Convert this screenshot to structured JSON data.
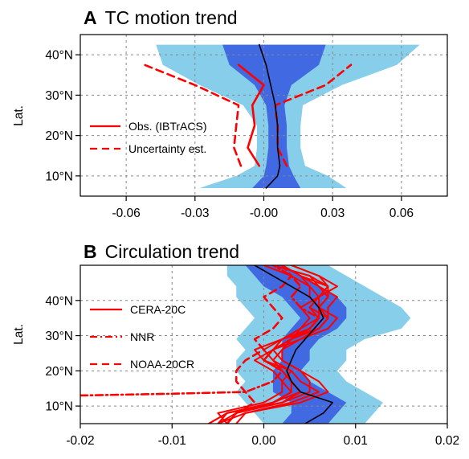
{
  "colors": {
    "outer_band": "#87CEEB",
    "inner_band": "#4169E1",
    "ensemble_mean": "#000000",
    "observation": "#FF0000",
    "grid": "#888888"
  },
  "chart_data": [
    {
      "type": "line",
      "panel_letter": "A",
      "title": "TC motion trend",
      "ylabel": "Lat.",
      "xlabel": "",
      "xlim": [
        -0.08,
        0.08
      ],
      "ylim": [
        5,
        45
      ],
      "xticks": [
        -0.06,
        -0.03,
        0.0,
        0.03,
        0.06
      ],
      "xtick_labels": [
        "-0.06",
        "-0.03",
        "-0.00",
        "0.03",
        "0.06"
      ],
      "yticks": [
        10,
        20,
        30,
        40
      ],
      "ytick_labels": [
        "10°N",
        "20°N",
        "30°N",
        "40°N"
      ],
      "grid": true,
      "legend_position": "left",
      "legend": [
        "Obs. (IBTrACS)",
        "Uncertainty est."
      ],
      "lat": [
        7,
        10,
        12.5,
        17,
        20,
        22.5,
        27.5,
        32.5,
        37.5,
        42.5
      ],
      "outer_band": {
        "lower": [
          -0.028,
          -0.012,
          -0.004,
          -0.003,
          -0.003,
          -0.003,
          -0.009,
          -0.028,
          -0.044,
          -0.047
        ],
        "upper": [
          0.036,
          0.028,
          0.018,
          0.016,
          0.016,
          0.016,
          0.017,
          0.034,
          0.058,
          0.068
        ]
      },
      "inner_band": {
        "lower": [
          -0.005,
          0.0,
          0.001,
          0.002,
          0.002,
          0.002,
          0.001,
          -0.004,
          -0.015,
          -0.018
        ],
        "upper": [
          0.016,
          0.013,
          0.011,
          0.01,
          0.01,
          0.01,
          0.009,
          0.012,
          0.024,
          0.027
        ]
      },
      "ensemble_mean": {
        "lat": [
          7,
          10,
          12.5,
          17,
          20,
          22.5,
          27.5,
          32.5,
          37.5,
          42.5
        ],
        "x": [
          0.001,
          0.006,
          0.007,
          0.006,
          0.006,
          0.006,
          0.005,
          0.003,
          0.001,
          -0.002
        ]
      },
      "series": [
        {
          "name": "Obs. (IBTrACS)",
          "style": "solid",
          "lat": [
            12.5,
            17,
            22.5,
            27.5,
            32.5,
            37.5
          ],
          "x": [
            -0.002,
            -0.007,
            -0.004,
            -0.005,
            0.0,
            -0.011
          ]
        },
        {
          "name": "Uncertainty est.",
          "style": "dashed",
          "lat": [
            12.5,
            17,
            22.5,
            27.5,
            32.5,
            37.5
          ],
          "x": [
            -0.01,
            -0.013,
            -0.012,
            -0.011,
            -0.03,
            -0.052
          ]
        },
        {
          "style": "dashed",
          "lat": [
            12.5,
            17,
            22.5,
            27.5,
            32.5,
            37.5
          ],
          "x": [
            0.01,
            0.006,
            0.006,
            0.005,
            0.027,
            0.038
          ]
        }
      ]
    },
    {
      "type": "line",
      "panel_letter": "B",
      "title": "Circulation trend",
      "ylabel": "Lat.",
      "xlabel": "",
      "xlim": [
        -0.02,
        0.02
      ],
      "ylim": [
        5,
        50
      ],
      "xticks": [
        -0.02,
        -0.01,
        0.0,
        0.01,
        0.02
      ],
      "xtick_labels": [
        "-0.02",
        "-0.01",
        "0.00",
        "0.01",
        "0.02"
      ],
      "yticks": [
        10,
        20,
        30,
        40
      ],
      "ytick_labels": [
        "10°N",
        "20°N",
        "30°N",
        "40°N"
      ],
      "grid": true,
      "legend_position": "left",
      "legend": [
        "CERA-20C",
        "NNR",
        "NOAA-20CR"
      ],
      "outer_band": {
        "lat": [
          5,
          8,
          11,
          14,
          17,
          20,
          23,
          26,
          29,
          32,
          35,
          38,
          41,
          44,
          47,
          50
        ],
        "lower": [
          0.0,
          -0.001,
          -0.002,
          -0.003,
          -0.002,
          -0.003,
          -0.003,
          -0.002,
          -0.003,
          -0.002,
          -0.001,
          -0.002,
          -0.003,
          -0.003,
          -0.004,
          -0.004
        ],
        "upper": [
          0.011,
          0.012,
          0.013,
          0.011,
          0.009,
          0.008,
          0.009,
          0.009,
          0.011,
          0.015,
          0.016,
          0.015,
          0.013,
          0.011,
          0.009,
          0.007
        ]
      },
      "inner_band": {
        "lat": [
          5,
          8,
          11,
          14,
          17,
          20,
          23,
          26,
          29,
          32,
          35,
          38,
          41,
          44,
          47,
          50
        ],
        "lower": [
          0.002,
          0.003,
          0.003,
          0.001,
          0.001,
          0.001,
          0.002,
          0.002,
          0.002,
          0.003,
          0.004,
          0.003,
          0.002,
          0.0,
          -0.001,
          -0.002
        ],
        "upper": [
          0.007,
          0.008,
          0.009,
          0.007,
          0.005,
          0.004,
          0.005,
          0.005,
          0.006,
          0.008,
          0.009,
          0.009,
          0.008,
          0.006,
          0.004,
          0.002
        ]
      },
      "ensemble_mean": {
        "lat": [
          5,
          8,
          11,
          14,
          17,
          20,
          23,
          26,
          29,
          32,
          35,
          38,
          41,
          44,
          47,
          50
        ],
        "x": [
          0.0045,
          0.0065,
          0.0075,
          0.004,
          0.003,
          0.0025,
          0.003,
          0.0035,
          0.0045,
          0.0055,
          0.0065,
          0.006,
          0.005,
          0.003,
          0.001,
          -0.001
        ]
      },
      "series": [
        {
          "name": "CERA-20C",
          "style": "solid",
          "lat": [
            5,
            8,
            11,
            14,
            17,
            20,
            23,
            26,
            29,
            32,
            35,
            38,
            41,
            44,
            47,
            50
          ],
          "members": [
            [
              -0.006,
              -0.004,
              0.001,
              0.004,
              0.003,
              0.002,
              0.0,
              0.001,
              0.003,
              0.006,
              0.007,
              0.005,
              0.006,
              0.007,
              0.005,
              0.001
            ],
            [
              -0.005,
              -0.002,
              0.003,
              0.006,
              0.004,
              0.003,
              0.001,
              0.0,
              0.002,
              0.005,
              0.006,
              0.006,
              0.007,
              0.006,
              0.004,
              0.002
            ],
            [
              -0.004,
              -0.005,
              0.0,
              0.002,
              0.002,
              0.001,
              -0.001,
              0.001,
              0.004,
              0.007,
              0.008,
              0.006,
              0.005,
              0.005,
              0.003,
              0.0
            ],
            [
              -0.005,
              -0.003,
              0.002,
              0.005,
              0.005,
              0.004,
              0.002,
              0.002,
              0.003,
              0.004,
              0.005,
              0.004,
              0.006,
              0.008,
              0.006,
              0.003
            ],
            [
              -0.006,
              -0.004,
              0.001,
              0.003,
              0.002,
              0.003,
              0.0,
              -0.001,
              0.002,
              0.006,
              0.007,
              0.007,
              0.008,
              0.006,
              0.005,
              0.001
            ],
            [
              -0.003,
              -0.002,
              0.004,
              0.007,
              0.006,
              0.004,
              0.002,
              0.001,
              0.002,
              0.004,
              0.006,
              0.005,
              0.006,
              0.007,
              0.004,
              0.002
            ],
            [
              -0.005,
              -0.004,
              0.002,
              0.004,
              0.003,
              0.002,
              0.001,
              0.002,
              0.004,
              0.006,
              0.007,
              0.006,
              0.007,
              0.007,
              0.006,
              0.003
            ],
            [
              -0.004,
              -0.003,
              0.001,
              0.003,
              0.003,
              0.002,
              0.0,
              0.001,
              0.003,
              0.005,
              0.006,
              0.006,
              0.006,
              0.005,
              0.004,
              0.002
            ]
          ]
        },
        {
          "name": "NNR",
          "style": "dashdot",
          "lat": [
            13,
            13.5,
            14,
            17,
            20,
            23,
            26,
            29,
            32,
            35,
            38,
            41,
            44,
            47,
            50
          ],
          "x": [
            -0.02,
            -0.01,
            -0.002,
            0.001,
            0.002,
            0.0,
            0.001,
            0.003,
            0.005,
            0.006,
            0.004,
            0.003,
            0.004,
            0.003,
            0.001
          ]
        },
        {
          "name": "NOAA-20CR",
          "style": "dashed",
          "lat": [
            5,
            8,
            11,
            14,
            17,
            20,
            23,
            26,
            29,
            32,
            35,
            38,
            41,
            44,
            47,
            50
          ],
          "x": [
            -0.004,
            -0.003,
            -0.001,
            -0.002,
            -0.003,
            -0.003,
            -0.002,
            0.0,
            -0.001,
            0.001,
            0.002,
            0.001,
            0.0,
            0.002,
            0.003,
            0.002
          ]
        }
      ]
    }
  ]
}
